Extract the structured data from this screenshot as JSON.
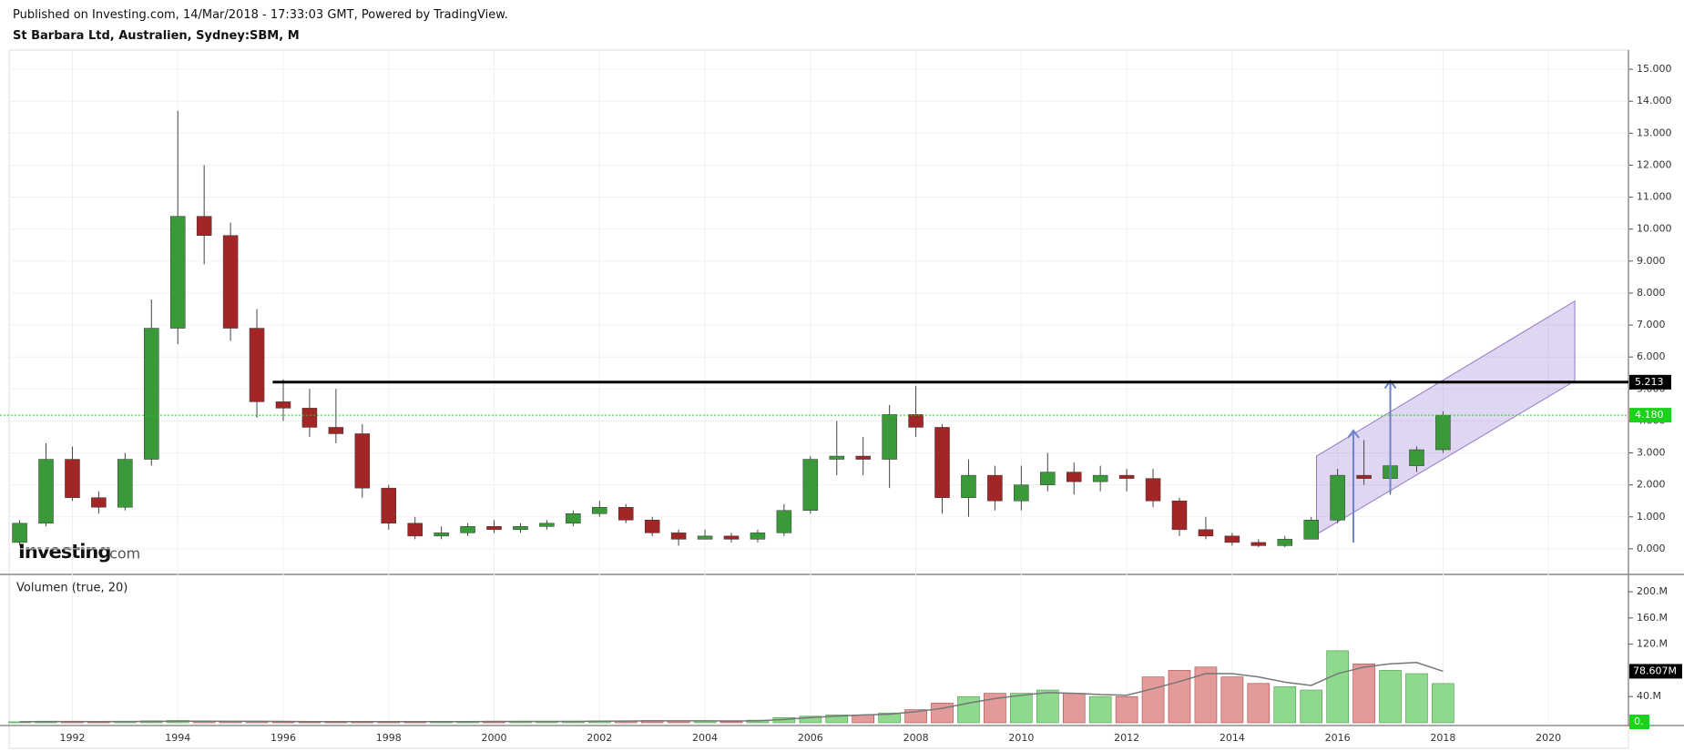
{
  "header": {
    "published": "Published on Investing.com, 14/Mar/2018 - 17:33:03 GMT, Powered by TradingView.",
    "symbol": "St Barbara Ltd, Australien, Sydney:SBM, M"
  },
  "watermark": {
    "brand": "Investing",
    "suffix": ".com"
  },
  "chart_data": [
    {
      "type": "candlestick",
      "up_color": "#3a9a3a",
      "down_color": "#a32626",
      "x": [
        1991,
        1991.5,
        1992,
        1992.5,
        1993,
        1993.5,
        1994,
        1994.5,
        1995,
        1995.5,
        1996,
        1996.5,
        1997,
        1997.5,
        1998,
        1998.5,
        1999,
        1999.5,
        2000,
        2000.5,
        2001,
        2001.5,
        2002,
        2002.5,
        2003,
        2003.5,
        2004,
        2004.5,
        2005,
        2005.5,
        2006,
        2006.5,
        2007,
        2007.5,
        2008,
        2008.5,
        2009,
        2009.5,
        2010,
        2010.5,
        2011,
        2011.5,
        2012,
        2012.5,
        2013,
        2013.5,
        2014,
        2014.5,
        2015,
        2015.5,
        2016,
        2016.5,
        2017,
        2017.5,
        2018
      ],
      "ohlc": [
        [
          0.2,
          0.9,
          0.1,
          0.8
        ],
        [
          0.8,
          3.3,
          0.7,
          2.8
        ],
        [
          2.8,
          3.2,
          1.5,
          1.6
        ],
        [
          1.6,
          1.8,
          1.1,
          1.3
        ],
        [
          1.3,
          3.0,
          1.2,
          2.8
        ],
        [
          2.8,
          7.8,
          2.6,
          6.9
        ],
        [
          6.9,
          13.7,
          6.4,
          10.4
        ],
        [
          10.4,
          12.0,
          8.9,
          9.8
        ],
        [
          9.8,
          10.2,
          6.5,
          6.9
        ],
        [
          6.9,
          7.5,
          4.1,
          4.6
        ],
        [
          4.6,
          5.3,
          4.0,
          4.4
        ],
        [
          4.4,
          5.0,
          3.5,
          3.8
        ],
        [
          3.8,
          5.0,
          3.3,
          3.6
        ],
        [
          3.6,
          3.9,
          1.6,
          1.9
        ],
        [
          1.9,
          2.0,
          0.6,
          0.8
        ],
        [
          0.8,
          1.0,
          0.3,
          0.4
        ],
        [
          0.4,
          0.7,
          0.3,
          0.5
        ],
        [
          0.5,
          0.8,
          0.4,
          0.7
        ],
        [
          0.7,
          0.9,
          0.5,
          0.6
        ],
        [
          0.6,
          0.8,
          0.5,
          0.7
        ],
        [
          0.7,
          0.9,
          0.6,
          0.8
        ],
        [
          0.8,
          1.2,
          0.7,
          1.1
        ],
        [
          1.1,
          1.5,
          1.0,
          1.3
        ],
        [
          1.3,
          1.4,
          0.8,
          0.9
        ],
        [
          0.9,
          1.0,
          0.4,
          0.5
        ],
        [
          0.5,
          0.6,
          0.1,
          0.3
        ],
        [
          0.3,
          0.6,
          0.3,
          0.4
        ],
        [
          0.4,
          0.5,
          0.2,
          0.3
        ],
        [
          0.3,
          0.6,
          0.2,
          0.5
        ],
        [
          0.5,
          1.4,
          0.4,
          1.2
        ],
        [
          1.2,
          2.9,
          1.1,
          2.8
        ],
        [
          2.8,
          4.0,
          2.3,
          2.9
        ],
        [
          2.9,
          3.5,
          2.3,
          2.8
        ],
        [
          2.8,
          4.5,
          1.9,
          4.2
        ],
        [
          4.2,
          5.1,
          3.5,
          3.8
        ],
        [
          3.8,
          3.9,
          1.1,
          1.6
        ],
        [
          1.6,
          2.8,
          1.0,
          2.3
        ],
        [
          2.3,
          2.6,
          1.2,
          1.5
        ],
        [
          1.5,
          2.6,
          1.2,
          2.0
        ],
        [
          2.0,
          3.0,
          1.8,
          2.4
        ],
        [
          2.4,
          2.7,
          1.7,
          2.1
        ],
        [
          2.1,
          2.6,
          1.8,
          2.3
        ],
        [
          2.3,
          2.5,
          1.8,
          2.2
        ],
        [
          2.2,
          2.5,
          1.3,
          1.5
        ],
        [
          1.5,
          1.6,
          0.4,
          0.6
        ],
        [
          0.6,
          1.0,
          0.3,
          0.4
        ],
        [
          0.4,
          0.5,
          0.1,
          0.2
        ],
        [
          0.2,
          0.3,
          0.05,
          0.1
        ],
        [
          0.1,
          0.4,
          0.05,
          0.3
        ],
        [
          0.3,
          1.0,
          0.3,
          0.9
        ],
        [
          0.9,
          2.5,
          0.8,
          2.3
        ],
        [
          2.3,
          3.4,
          2.0,
          2.2
        ],
        [
          2.2,
          2.8,
          1.7,
          2.6
        ],
        [
          2.6,
          3.2,
          2.4,
          3.1
        ],
        [
          3.1,
          4.3,
          3.0,
          4.18
        ]
      ],
      "xlim": [
        1990.8,
        2021.5
      ],
      "xticks": [
        1992,
        1994,
        1996,
        1998,
        2000,
        2002,
        2004,
        2006,
        2008,
        2010,
        2012,
        2014,
        2016,
        2018,
        2020
      ],
      "ylim": [
        -0.8,
        15.6
      ],
      "yticks": [
        {
          "value": 0,
          "label": "0.000"
        },
        {
          "value": 1,
          "label": "1.000"
        },
        {
          "value": 2,
          "label": "2.000"
        },
        {
          "value": 3,
          "label": "3.000"
        },
        {
          "value": 4,
          "label": "4.000"
        },
        {
          "value": 5,
          "label": "5.000"
        },
        {
          "value": 6,
          "label": "6.000"
        },
        {
          "value": 7,
          "label": "7.000"
        },
        {
          "value": 8,
          "label": "8.000"
        },
        {
          "value": 9,
          "label": "9.000"
        },
        {
          "value": 10,
          "label": "10.000"
        },
        {
          "value": 11,
          "label": "11.000"
        },
        {
          "value": 12,
          "label": "12.000"
        },
        {
          "value": 13,
          "label": "13.000"
        },
        {
          "value": 14,
          "label": "14.000"
        },
        {
          "value": 15,
          "label": "15.000"
        }
      ],
      "grid": true,
      "hline": {
        "value": 5.213,
        "label": "5.213",
        "x_start": 1995.8,
        "x_end": 2020.5
      },
      "last_price": {
        "value": 4.18,
        "label": "4.180"
      },
      "channel": {
        "x": [
          2015.6,
          2020.5
        ],
        "lower": [
          0.45,
          5.25
        ],
        "upper": [
          2.9,
          7.75
        ]
      },
      "arrows": [
        {
          "x": 2016.3,
          "from": 0.2,
          "to": 3.7
        },
        {
          "x": 2017.0,
          "from": 1.75,
          "to": 5.25
        }
      ]
    },
    {
      "type": "volume",
      "title": "Volumen (true, 20)",
      "values": [
        1500000,
        2500000,
        2000000,
        1500000,
        2000000,
        3000000,
        3500000,
        2500000,
        2000000,
        2000000,
        1500000,
        1500000,
        1500000,
        2000000,
        2000000,
        1500000,
        1500000,
        2000000,
        2500000,
        2000000,
        2000000,
        2500000,
        3000000,
        3000000,
        3500000,
        3000000,
        2500000,
        2000000,
        4000000,
        8000000,
        10000000,
        12000000,
        12000000,
        15000000,
        20000000,
        30000000,
        40000000,
        45000000,
        45000000,
        50000000,
        45000000,
        40000000,
        40000000,
        70000000,
        80000000,
        85000000,
        70000000,
        60000000,
        55000000,
        50000000,
        110000000,
        90000000,
        80000000,
        75000000,
        60000000
      ],
      "ma": [
        1500000,
        1800000,
        1900000,
        1800000,
        1900000,
        2100000,
        2400000,
        2400000,
        2300000,
        2200000,
        2000000,
        1800000,
        1700000,
        1800000,
        1800000,
        1700000,
        1700000,
        1800000,
        1900000,
        2000000,
        2000000,
        2100000,
        2400000,
        2600000,
        2900000,
        3000000,
        2900000,
        2700000,
        3000000,
        5000000,
        8000000,
        10000000,
        12000000,
        13000000,
        17000000,
        22000000,
        30000000,
        37000000,
        42000000,
        46000000,
        45000000,
        43000000,
        42000000,
        52000000,
        63000000,
        75000000,
        75000000,
        70000000,
        62000000,
        57000000,
        75000000,
        85000000,
        90000000,
        92000000,
        78607000
      ],
      "ma_color": "#777777",
      "ylim": [
        0,
        214000000
      ],
      "yticks": [
        {
          "value": 40000000,
          "label": "40.M"
        },
        {
          "value": 120000000,
          "label": "120.M"
        },
        {
          "value": 160000000,
          "label": "160.M"
        },
        {
          "value": 200000000,
          "label": "200.M"
        }
      ],
      "last_ma": {
        "value": 78607000,
        "label": "78.607M"
      },
      "zero_marker": {
        "value": 0,
        "label": "0."
      }
    }
  ]
}
